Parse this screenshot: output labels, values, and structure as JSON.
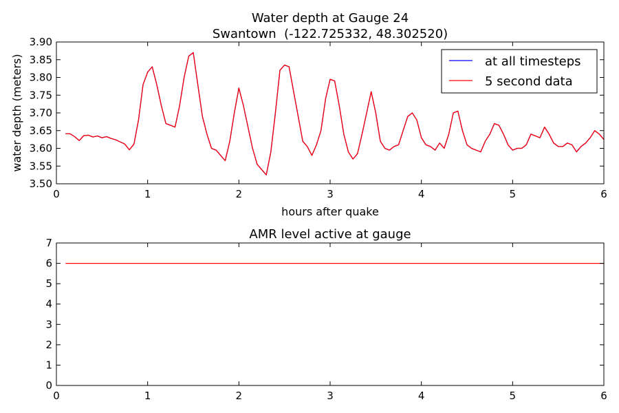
{
  "chart_data": [
    {
      "type": "line",
      "title": "Water depth at Gauge 24",
      "subtitle": "Swantown  (-122.725332, 48.302520)",
      "xlabel": "hours after quake",
      "ylabel": "water depth (meters)",
      "xlim": [
        0,
        6
      ],
      "ylim": [
        3.5,
        3.9
      ],
      "xticks": [
        "0",
        "1",
        "2",
        "3",
        "4",
        "5",
        "6"
      ],
      "yticks": [
        "3.50",
        "3.55",
        "3.60",
        "3.65",
        "3.70",
        "3.75",
        "3.80",
        "3.85",
        "3.90"
      ],
      "grid": false,
      "legend_position": "top-right",
      "series": [
        {
          "name": "at all timesteps",
          "color": "#0000ff",
          "x": [
            0.1,
            0.15,
            0.2,
            0.25,
            0.3,
            0.35,
            0.4,
            0.45,
            0.5,
            0.55,
            0.6,
            0.65,
            0.7,
            0.75,
            0.8,
            0.85,
            0.9,
            0.95,
            1.0,
            1.05,
            1.1,
            1.15,
            1.2,
            1.25,
            1.3,
            1.35,
            1.4,
            1.45,
            1.5,
            1.55,
            1.6,
            1.65,
            1.7,
            1.75,
            1.8,
            1.85,
            1.9,
            1.95,
            2.0,
            2.05,
            2.1,
            2.15,
            2.2,
            2.25,
            2.3,
            2.35,
            2.4,
            2.45,
            2.5,
            2.55,
            2.6,
            2.65,
            2.7,
            2.75,
            2.8,
            2.85,
            2.9,
            2.95,
            3.0,
            3.05,
            3.1,
            3.15,
            3.2,
            3.25,
            3.3,
            3.35,
            3.4,
            3.45,
            3.5,
            3.55,
            3.6,
            3.65,
            3.7,
            3.75,
            3.8,
            3.85,
            3.9,
            3.95,
            4.0,
            4.05,
            4.1,
            4.15,
            4.2,
            4.25,
            4.3,
            4.35,
            4.4,
            4.45,
            4.5,
            4.55,
            4.6,
            4.65,
            4.7,
            4.75,
            4.8,
            4.85,
            4.9,
            4.95,
            5.0,
            5.05,
            5.1,
            5.15,
            5.2,
            5.25,
            5.3,
            5.35,
            5.4,
            5.45,
            5.5,
            5.55,
            5.6,
            5.65,
            5.7,
            5.75,
            5.8,
            5.85,
            5.9,
            5.95,
            6.0
          ],
          "y": [
            3.641,
            3.641,
            3.633,
            3.622,
            3.636,
            3.637,
            3.632,
            3.635,
            3.63,
            3.633,
            3.628,
            3.624,
            3.618,
            3.612,
            3.596,
            3.612,
            3.68,
            3.78,
            3.815,
            3.83,
            3.78,
            3.72,
            3.67,
            3.665,
            3.66,
            3.72,
            3.8,
            3.86,
            3.87,
            3.78,
            3.69,
            3.64,
            3.6,
            3.595,
            3.58,
            3.565,
            3.62,
            3.7,
            3.77,
            3.72,
            3.66,
            3.6,
            3.555,
            3.54,
            3.525,
            3.59,
            3.7,
            3.82,
            3.835,
            3.83,
            3.76,
            3.69,
            3.62,
            3.605,
            3.58,
            3.61,
            3.65,
            3.74,
            3.795,
            3.79,
            3.72,
            3.64,
            3.59,
            3.57,
            3.585,
            3.64,
            3.7,
            3.76,
            3.7,
            3.62,
            3.6,
            3.595,
            3.605,
            3.61,
            3.65,
            3.69,
            3.7,
            3.68,
            3.63,
            3.61,
            3.605,
            3.595,
            3.615,
            3.6,
            3.64,
            3.7,
            3.705,
            3.65,
            3.61,
            3.6,
            3.595,
            3.59,
            3.62,
            3.64,
            3.67,
            3.665,
            3.64,
            3.61,
            3.595,
            3.6,
            3.6,
            3.61,
            3.64,
            3.635,
            3.63,
            3.66,
            3.64,
            3.615,
            3.605,
            3.605,
            3.615,
            3.61,
            3.59,
            3.605,
            3.615,
            3.63,
            3.65,
            3.64,
            3.625
          ]
        },
        {
          "name": "5 second data",
          "color": "#ff0000",
          "x": [
            0.1,
            0.15,
            0.2,
            0.25,
            0.3,
            0.35,
            0.4,
            0.45,
            0.5,
            0.55,
            0.6,
            0.65,
            0.7,
            0.75,
            0.8,
            0.85,
            0.9,
            0.95,
            1.0,
            1.05,
            1.1,
            1.15,
            1.2,
            1.25,
            1.3,
            1.35,
            1.4,
            1.45,
            1.5,
            1.55,
            1.6,
            1.65,
            1.7,
            1.75,
            1.8,
            1.85,
            1.9,
            1.95,
            2.0,
            2.05,
            2.1,
            2.15,
            2.2,
            2.25,
            2.3,
            2.35,
            2.4,
            2.45,
            2.5,
            2.55,
            2.6,
            2.65,
            2.7,
            2.75,
            2.8,
            2.85,
            2.9,
            2.95,
            3.0,
            3.05,
            3.1,
            3.15,
            3.2,
            3.25,
            3.3,
            3.35,
            3.4,
            3.45,
            3.5,
            3.55,
            3.6,
            3.65,
            3.7,
            3.75,
            3.8,
            3.85,
            3.9,
            3.95,
            4.0,
            4.05,
            4.1,
            4.15,
            4.2,
            4.25,
            4.3,
            4.35,
            4.4,
            4.45,
            4.5,
            4.55,
            4.6,
            4.65,
            4.7,
            4.75,
            4.8,
            4.85,
            4.9,
            4.95,
            5.0,
            5.05,
            5.1,
            5.15,
            5.2,
            5.25,
            5.3,
            5.35,
            5.4,
            5.45,
            5.5,
            5.55,
            5.6,
            5.65,
            5.7,
            5.75,
            5.8,
            5.85,
            5.9,
            5.95,
            6.0
          ],
          "y": [
            3.641,
            3.641,
            3.633,
            3.622,
            3.636,
            3.637,
            3.632,
            3.635,
            3.63,
            3.633,
            3.628,
            3.624,
            3.618,
            3.612,
            3.596,
            3.612,
            3.68,
            3.78,
            3.815,
            3.83,
            3.78,
            3.72,
            3.67,
            3.665,
            3.66,
            3.72,
            3.8,
            3.86,
            3.87,
            3.78,
            3.69,
            3.64,
            3.6,
            3.595,
            3.58,
            3.565,
            3.62,
            3.7,
            3.77,
            3.72,
            3.66,
            3.6,
            3.555,
            3.54,
            3.525,
            3.59,
            3.7,
            3.82,
            3.835,
            3.83,
            3.76,
            3.69,
            3.62,
            3.605,
            3.58,
            3.61,
            3.65,
            3.74,
            3.795,
            3.79,
            3.72,
            3.64,
            3.59,
            3.57,
            3.585,
            3.64,
            3.7,
            3.76,
            3.7,
            3.62,
            3.6,
            3.595,
            3.605,
            3.61,
            3.65,
            3.69,
            3.7,
            3.68,
            3.63,
            3.61,
            3.605,
            3.595,
            3.615,
            3.6,
            3.64,
            3.7,
            3.705,
            3.65,
            3.61,
            3.6,
            3.595,
            3.59,
            3.62,
            3.64,
            3.67,
            3.665,
            3.64,
            3.61,
            3.595,
            3.6,
            3.6,
            3.61,
            3.64,
            3.635,
            3.63,
            3.66,
            3.64,
            3.615,
            3.605,
            3.605,
            3.615,
            3.61,
            3.59,
            3.605,
            3.615,
            3.63,
            3.65,
            3.64,
            3.625
          ]
        }
      ]
    },
    {
      "type": "line",
      "title": "AMR level active at gauge",
      "xlabel": "",
      "ylabel": "",
      "xlim": [
        0,
        6
      ],
      "ylim": [
        0,
        7
      ],
      "xticks": [
        "0",
        "1",
        "2",
        "3",
        "4",
        "5",
        "6"
      ],
      "yticks": [
        "0",
        "1",
        "2",
        "3",
        "4",
        "5",
        "6",
        "7"
      ],
      "grid": false,
      "series": [
        {
          "color": "#ff0000",
          "x": [
            0.1,
            6.0
          ],
          "y": [
            6,
            6
          ]
        }
      ]
    }
  ]
}
